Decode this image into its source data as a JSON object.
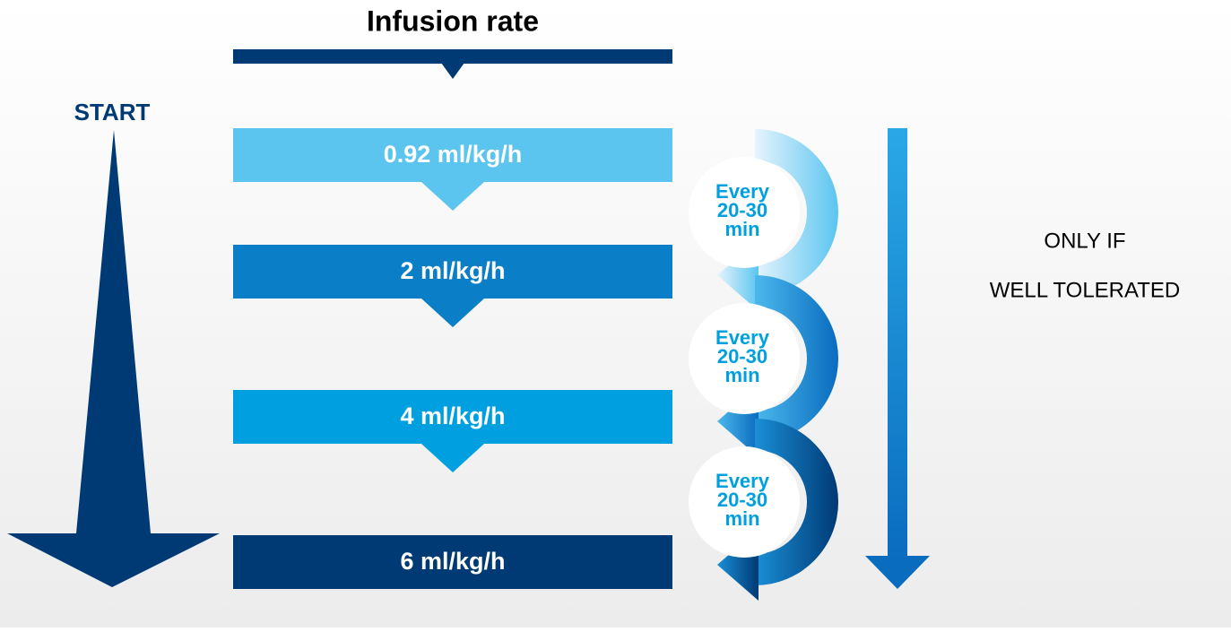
{
  "title": "Infusion rate",
  "start": "START",
  "steps": [
    {
      "label": "0.92 ml/kg/h"
    },
    {
      "label": "2 ml/kg/h"
    },
    {
      "label": "4 ml/kg/h"
    },
    {
      "label": "6 ml/kg/h"
    }
  ],
  "intervals": [
    {
      "lines": [
        "Every",
        "20-30",
        "min"
      ]
    },
    {
      "lines": [
        "Every",
        "20-30",
        "min"
      ]
    },
    {
      "lines": [
        "Every",
        "20-30",
        "min"
      ]
    }
  ],
  "note": {
    "lines": [
      "ONLY IF",
      "WELL TOLERATED"
    ]
  }
}
